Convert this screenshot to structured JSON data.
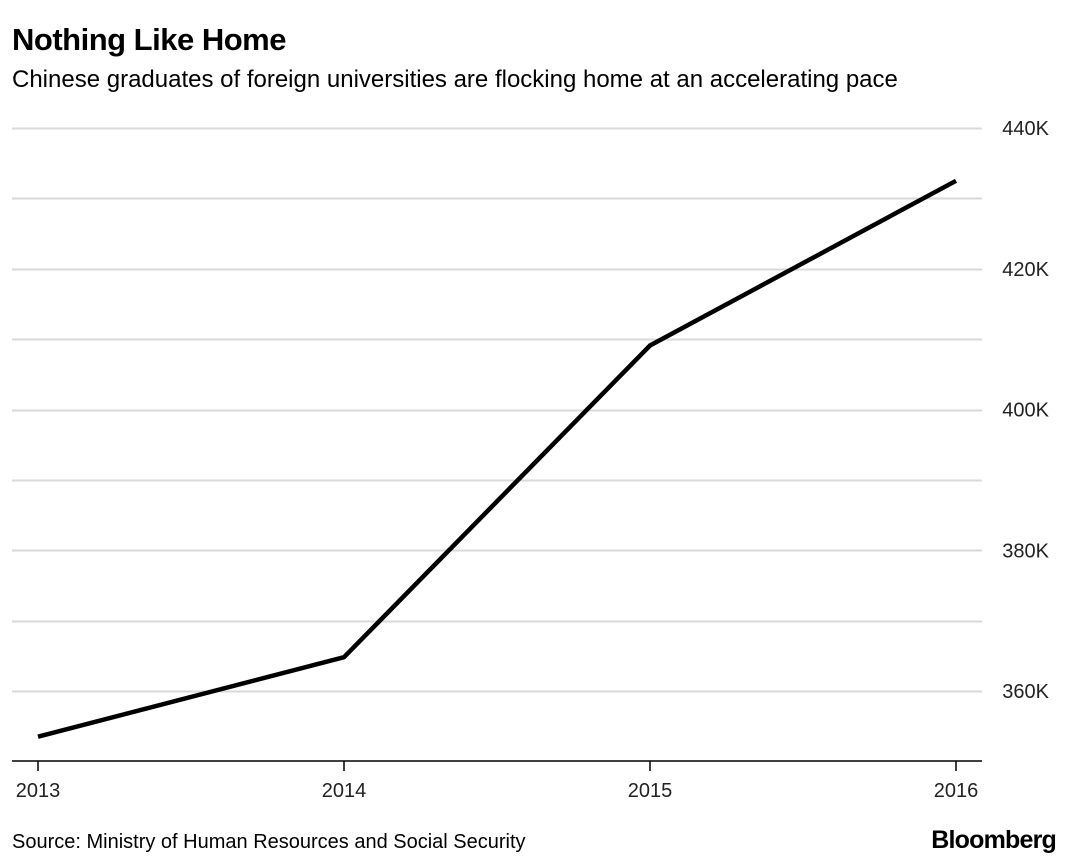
{
  "header": {
    "title": "Nothing Like Home",
    "subtitle": "Chinese graduates of foreign universities are flocking home at an accelerating pace"
  },
  "footer": {
    "source": "Source: Ministry of Human Resources and Social Security",
    "brand": "Bloomberg"
  },
  "chart_data": {
    "type": "line",
    "title": "Nothing Like Home",
    "subtitle": "Chinese graduates of foreign universities are flocking home at an accelerating pace",
    "xlabel": "",
    "ylabel": "",
    "x": [
      "2013",
      "2014",
      "2015",
      "2016"
    ],
    "series": [
      {
        "values": [
          353500,
          364800,
          409100,
          432500
        ]
      }
    ],
    "ylim": [
      350000,
      440000
    ],
    "yticks": [
      360000,
      380000,
      400000,
      420000,
      440000
    ],
    "ytick_labels": [
      "360K",
      "380K",
      "400K",
      "420K",
      "440K"
    ],
    "grid": true,
    "y_axis_side": "right",
    "line_color": "#000000",
    "grid_color": "#d9d9d9"
  }
}
